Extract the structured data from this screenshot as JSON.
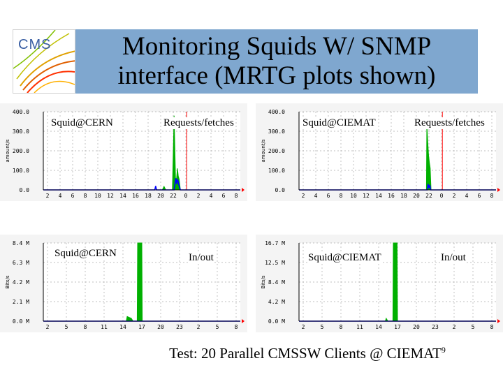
{
  "title": {
    "line1": "Monitoring Squids W/ SNMP",
    "line2": "interface (MRTG plots shown)"
  },
  "logo": {
    "text": "CMS",
    "icon": "cms-detector-logo"
  },
  "footer": {
    "text": "Test: 20 Parallel CMSSW Clients @ CIEMAT",
    "page_number": "9"
  },
  "colors": {
    "title_bg": "#7fa7cf",
    "green": "#00b000",
    "blue": "#0000ff",
    "red": "#ff0000",
    "grid": "#aaaaaa"
  },
  "chart_data": [
    {
      "type": "area",
      "caption_left": "Squid@CERN",
      "caption_right": "Requests/fetches",
      "ylabel": "amount/s",
      "yticks": [
        "0.0",
        "100.0",
        "200.0",
        "300.0",
        "400.0"
      ],
      "ylim": [
        0,
        400
      ],
      "xticks": [
        "2",
        "4",
        "6",
        "8",
        "10",
        "12",
        "14",
        "16",
        "18",
        "20",
        "22",
        "0",
        "2",
        "4",
        "6",
        "8"
      ],
      "series": [
        {
          "color": "#00b000",
          "points": [
            [
              14.2,
              0
            ],
            [
              14.4,
              18
            ],
            [
              14.6,
              0
            ],
            [
              15.4,
              0
            ],
            [
              15.6,
              380
            ],
            [
              15.8,
              0
            ],
            [
              15.9,
              60
            ],
            [
              16.0,
              110
            ],
            [
              16.1,
              70
            ],
            [
              16.2,
              55
            ],
            [
              16.35,
              0
            ]
          ]
        },
        {
          "color": "#0000ff",
          "points": [
            [
              0,
              0
            ],
            [
              13.3,
              0
            ],
            [
              13.4,
              20
            ],
            [
              13.5,
              0
            ],
            [
              15.6,
              0
            ],
            [
              15.8,
              60
            ],
            [
              15.9,
              30
            ],
            [
              16.0,
              55
            ],
            [
              16.1,
              40
            ],
            [
              16.2,
              20
            ],
            [
              16.35,
              0
            ],
            [
              23.5,
              0
            ]
          ]
        }
      ],
      "marker_x": 17.1
    },
    {
      "type": "area",
      "caption_left": "Squid@CIEMAT",
      "caption_right": "Requests/fetches",
      "ylabel": "amount/s",
      "yticks": [
        "0.0",
        "100.0",
        "200.0",
        "300.0",
        "400.0"
      ],
      "ylim": [
        0,
        400
      ],
      "xticks": [
        "2",
        "4",
        "6",
        "8",
        "10",
        "12",
        "14",
        "16",
        "18",
        "20",
        "22",
        "0",
        "2",
        "4",
        "6",
        "8"
      ],
      "series": [
        {
          "color": "#00b000",
          "points": [
            [
              15.2,
              0
            ],
            [
              15.25,
              330
            ],
            [
              15.35,
              250
            ],
            [
              15.45,
              180
            ],
            [
              15.55,
              140
            ],
            [
              15.65,
              110
            ],
            [
              15.75,
              0
            ]
          ]
        },
        {
          "color": "#0000ff",
          "points": [
            [
              0,
              0
            ],
            [
              15.3,
              0
            ],
            [
              15.4,
              30
            ],
            [
              15.5,
              10
            ],
            [
              15.6,
              25
            ],
            [
              15.7,
              0
            ],
            [
              23.5,
              0
            ]
          ]
        }
      ],
      "marker_x": 17.1
    },
    {
      "type": "area",
      "caption_left": "Squid@CERN",
      "caption_right": "In/out",
      "ylabel": "Bits/s",
      "yticks": [
        "0.0 M",
        "2.1 M",
        "4.2 M",
        "6.3 M",
        "8.4 M"
      ],
      "ylim": [
        0,
        8.4
      ],
      "xticks": [
        "2",
        "5",
        "8",
        "11",
        "14",
        "17",
        "20",
        "23",
        "2",
        "5",
        "8"
      ],
      "series": [
        {
          "color": "#00b000",
          "points": [
            [
              9.9,
              0
            ],
            [
              10.0,
              0.5
            ],
            [
              10.5,
              0.3
            ],
            [
              10.7,
              0
            ],
            [
              11.2,
              0
            ],
            [
              11.25,
              8.4
            ],
            [
              11.75,
              8.4
            ],
            [
              11.8,
              0
            ]
          ]
        },
        {
          "color": "#0000ff",
          "points": [
            [
              0,
              0
            ],
            [
              23.5,
              0
            ]
          ]
        }
      ],
      "marker_x": null
    },
    {
      "type": "area",
      "caption_left": "Squid@CIEMAT",
      "caption_right": "In/out",
      "ylabel": "Bits/s",
      "yticks": [
        "0.0 M",
        "4.2 M",
        "8.4 M",
        "12.5 M",
        "16.7 M"
      ],
      "ylim": [
        0,
        16.7
      ],
      "xticks": [
        "2",
        "5",
        "8",
        "11",
        "14",
        "17",
        "20",
        "23",
        "2",
        "5",
        "8"
      ],
      "series": [
        {
          "color": "#00b000",
          "points": [
            [
              10.3,
              0
            ],
            [
              10.4,
              0.6
            ],
            [
              10.6,
              0
            ],
            [
              11.2,
              0
            ],
            [
              11.25,
              16.7
            ],
            [
              11.7,
              16.7
            ],
            [
              11.75,
              0
            ]
          ]
        },
        {
          "color": "#0000ff",
          "points": [
            [
              0,
              0
            ],
            [
              23.5,
              0
            ]
          ]
        }
      ],
      "marker_x": null
    }
  ]
}
